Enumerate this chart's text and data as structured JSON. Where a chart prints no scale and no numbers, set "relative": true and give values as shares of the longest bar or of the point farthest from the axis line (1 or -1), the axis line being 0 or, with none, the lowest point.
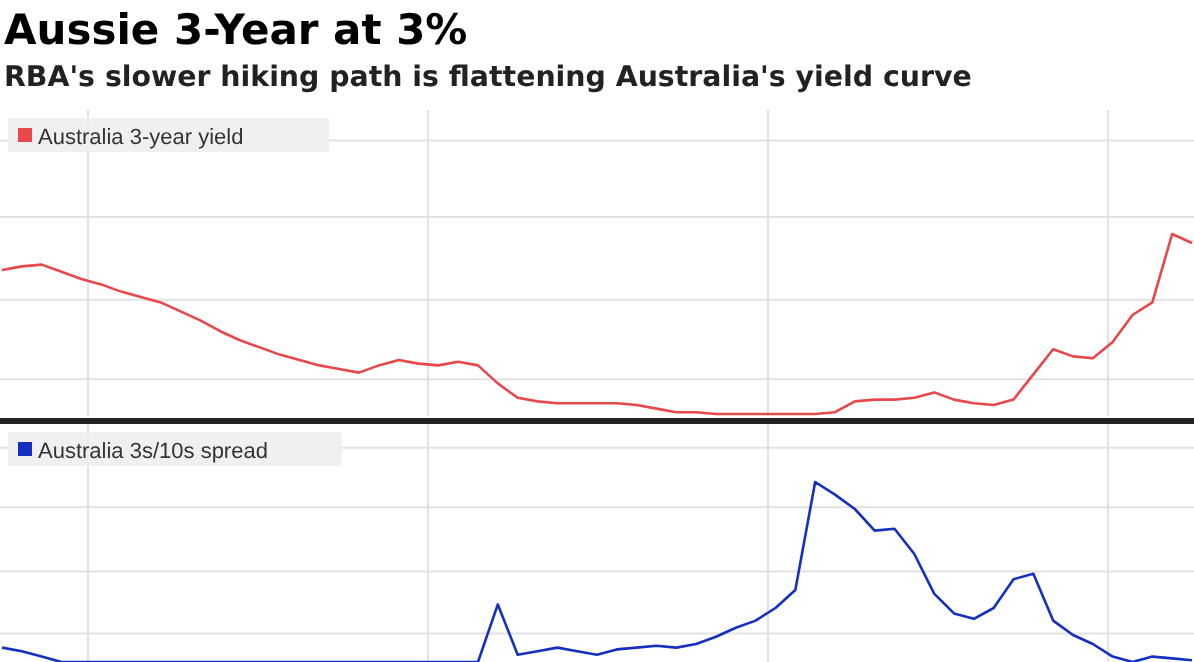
{
  "chart_data": [
    {
      "type": "line",
      "title": "Aussie 3-Year at 3%",
      "subtitle": "RBA's slower hiking path is flattening Australia's yield curve",
      "relative": true,
      "grid": true,
      "legend": "top left",
      "categories": [
        null,
        null,
        null,
        null,
        null,
        null,
        null,
        null,
        null,
        null,
        null,
        null,
        null,
        null,
        null,
        null,
        null,
        null,
        null,
        null,
        null,
        null,
        null,
        null,
        null,
        null,
        null,
        null,
        null,
        null,
        null,
        null,
        null,
        null,
        null,
        null,
        null,
        null,
        null,
        null,
        null,
        null,
        null,
        null,
        null,
        null,
        null,
        null,
        null,
        null,
        null,
        null,
        null,
        null,
        null,
        null,
        null,
        null,
        null,
        null,
        null
      ],
      "series": [
        {
          "name": "Australia 3-year yield",
          "color": "#e8474b",
          "values": [
            0.8,
            0.82,
            0.83,
            0.79,
            0.75,
            0.72,
            0.68,
            0.65,
            0.62,
            0.57,
            0.52,
            0.46,
            0.41,
            0.37,
            0.33,
            0.3,
            0.27,
            0.25,
            0.23,
            0.27,
            0.3,
            0.28,
            0.27,
            0.29,
            0.27,
            0.17,
            0.09,
            0.07,
            0.06,
            0.06,
            0.06,
            0.06,
            0.05,
            0.03,
            0.01,
            0.01,
            0,
            0,
            0,
            0,
            0,
            0,
            0.01,
            0.07,
            0.08,
            0.08,
            0.09,
            0.12,
            0.08,
            0.06,
            0.05,
            0.08,
            0.22,
            0.36,
            0.32,
            0.31,
            0.4,
            0.55,
            0.62,
            1,
            0.95
          ]
        }
      ]
    },
    {
      "type": "line",
      "relative": true,
      "grid": true,
      "legend": "top left",
      "categories": [
        null,
        null,
        null,
        null,
        null,
        null,
        null,
        null,
        null,
        null,
        null,
        null,
        null,
        null,
        null,
        null,
        null,
        null,
        null,
        null,
        null,
        null,
        null,
        null,
        null,
        null,
        null,
        null,
        null,
        null,
        null,
        null,
        null,
        null,
        null,
        null,
        null,
        null,
        null,
        null,
        null,
        null,
        null,
        null,
        null,
        null,
        null,
        null,
        null,
        null,
        null,
        null,
        null,
        null,
        null,
        null,
        null,
        null,
        null,
        null,
        null
      ],
      "series": [
        {
          "name": "Australia 3s/10s spread",
          "color": "#1530c0",
          "values": [
            0.08,
            0.06,
            0.03,
            0,
            0,
            0,
            0,
            0,
            0,
            0,
            0,
            0,
            0,
            0,
            0,
            0,
            0,
            0,
            0,
            0,
            0,
            0,
            0,
            0,
            0,
            0.32,
            0.04,
            0.06,
            0.08,
            0.06,
            0.04,
            0.07,
            0.08,
            0.09,
            0.08,
            0.1,
            0.14,
            0.19,
            0.23,
            0.3,
            0.4,
            1,
            0.93,
            0.85,
            0.73,
            0.74,
            0.6,
            0.38,
            0.27,
            0.24,
            0.3,
            0.46,
            0.49,
            0.23,
            0.15,
            0.1,
            0.03,
            0,
            0.03,
            0.02,
            0.01
          ]
        }
      ]
    }
  ]
}
